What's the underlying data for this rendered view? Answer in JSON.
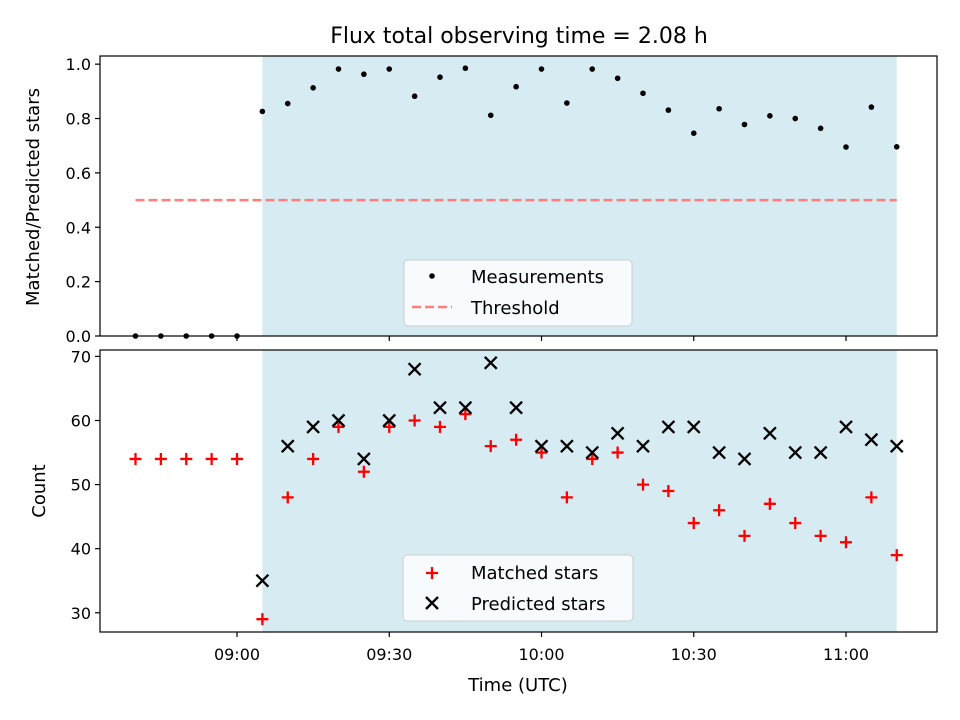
{
  "title": "Flux total observing time = 2.08 h",
  "colors": {
    "band": "#add8e6",
    "matched": "#ff0000",
    "predicted": "#000000",
    "threshold": "#ff7f7f",
    "measurements": "#000000"
  },
  "chart_data": [
    {
      "type": "scatter",
      "ylabel": "Matched/Predicted stars",
      "ylim": [
        0,
        1.03
      ],
      "yticks": [
        "0.0",
        "0.2",
        "0.4",
        "0.6",
        "0.8",
        "1.0"
      ],
      "shaded_interval": [
        "09:05",
        "11:10"
      ],
      "legend": {
        "placement": "lower center",
        "entries": [
          "Measurements",
          "Threshold"
        ]
      },
      "threshold": {
        "name": "Threshold",
        "value": 0.5,
        "x_range": [
          "08:40",
          "11:10"
        ]
      },
      "series": [
        {
          "name": "Measurements",
          "x": [
            "08:40",
            "08:45",
            "08:50",
            "08:55",
            "09:00",
            "09:05",
            "09:10",
            "09:15",
            "09:20",
            "09:25",
            "09:30",
            "09:35",
            "09:40",
            "09:45",
            "09:50",
            "09:55",
            "10:00",
            "10:05",
            "10:10",
            "10:15",
            "10:20",
            "10:25",
            "10:30",
            "10:35",
            "10:40",
            "10:45",
            "10:50",
            "10:55",
            "11:00",
            "11:05",
            "11:10"
          ],
          "y": [
            0,
            0,
            0,
            0,
            0,
            0.826,
            0.855,
            0.913,
            0.982,
            0.963,
            0.982,
            0.882,
            0.952,
            0.985,
            0.812,
            0.917,
            0.982,
            0.857,
            0.982,
            0.948,
            0.893,
            0.831,
            0.746,
            0.836,
            0.778,
            0.81,
            0.8,
            0.764,
            0.695,
            0.842,
            0.696
          ]
        }
      ]
    },
    {
      "type": "scatter",
      "xlabel": "Time (UTC)",
      "ylabel": "Count",
      "ylim": [
        27,
        71
      ],
      "yticks": [
        "30",
        "40",
        "50",
        "60",
        "70"
      ],
      "xticks": [
        "09:00",
        "09:30",
        "10:00",
        "10:30",
        "11:00"
      ],
      "shaded_interval": [
        "09:05",
        "11:10"
      ],
      "legend": {
        "placement": "lower center",
        "entries": [
          "Matched stars",
          "Predicted stars"
        ]
      },
      "series": [
        {
          "name": "Matched stars",
          "marker": "plus",
          "x": [
            "08:40",
            "08:45",
            "08:50",
            "08:55",
            "09:00",
            "09:05",
            "09:10",
            "09:15",
            "09:20",
            "09:25",
            "09:30",
            "09:35",
            "09:40",
            "09:45",
            "09:50",
            "09:55",
            "10:00",
            "10:05",
            "10:10",
            "10:15",
            "10:20",
            "10:25",
            "10:30",
            "10:35",
            "10:40",
            "10:45",
            "10:50",
            "10:55",
            "11:00",
            "11:05",
            "11:10"
          ],
          "y": [
            54,
            54,
            54,
            54,
            54,
            29,
            48,
            54,
            59,
            52,
            59,
            60,
            59,
            61,
            56,
            57,
            55,
            48,
            54,
            55,
            50,
            49,
            44,
            46,
            42,
            47,
            44,
            42,
            41,
            48,
            39
          ]
        },
        {
          "name": "Predicted stars",
          "marker": "x",
          "x": [
            "09:05",
            "09:10",
            "09:15",
            "09:20",
            "09:25",
            "09:30",
            "09:35",
            "09:40",
            "09:45",
            "09:50",
            "09:55",
            "10:00",
            "10:05",
            "10:10",
            "10:15",
            "10:20",
            "10:25",
            "10:30",
            "10:35",
            "10:40",
            "10:45",
            "10:50",
            "10:55",
            "11:00",
            "11:05",
            "11:10"
          ],
          "y": [
            35,
            56,
            59,
            60,
            54,
            60,
            68,
            62,
            62,
            69,
            62,
            56,
            56,
            55,
            58,
            56,
            59,
            59,
            55,
            54,
            58,
            55,
            55,
            59,
            57,
            56
          ]
        }
      ]
    }
  ]
}
